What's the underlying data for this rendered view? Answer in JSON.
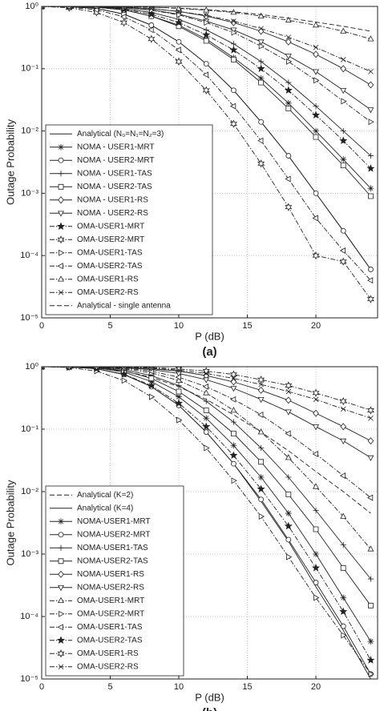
{
  "chart_data": [
    {
      "type": "line",
      "panel_label": "(a)",
      "xlabel": "P (dB)",
      "ylabel": "Outage Probability",
      "x": [
        0,
        2,
        4,
        6,
        8,
        10,
        12,
        14,
        16,
        18,
        20,
        22,
        24
      ],
      "xlim": [
        0,
        24.5
      ],
      "xticks": [
        0,
        5,
        10,
        15,
        20
      ],
      "y_scale": "log",
      "ylim": [
        1e-05,
        1
      ],
      "yticks": [
        {
          "value": 1e-05,
          "label": "10⁻⁵"
        },
        {
          "value": 0.0001,
          "label": "10⁻⁴"
        },
        {
          "value": 0.001,
          "label": "10⁻³"
        },
        {
          "value": 0.01,
          "label": "10⁻²"
        },
        {
          "value": 0.1,
          "label": "10⁻¹"
        },
        {
          "value": 1,
          "label": "10⁰"
        }
      ],
      "grid": true,
      "legend": "lower left",
      "series": [
        {
          "name": "Analytical (N₀=N₁=N₂=3)",
          "marker": "none",
          "line": "solid",
          "values": [
            1,
            0.99,
            0.93,
            0.75,
            0.5,
            0.27,
            0.12,
            0.045,
            0.014,
            0.004,
            0.001,
            0.00025,
            6e-05
          ]
        },
        {
          "name": "NOMA - USER1-MRT",
          "marker": "asterisk",
          "line": "solid",
          "values": [
            1,
            1,
            0.97,
            0.88,
            0.7,
            0.5,
            0.3,
            0.15,
            0.07,
            0.028,
            0.01,
            0.0035,
            0.0012
          ]
        },
        {
          "name": "NOMA - USER2-MRT",
          "marker": "circle",
          "line": "solid",
          "values": [
            1,
            0.99,
            0.93,
            0.75,
            0.5,
            0.27,
            0.12,
            0.045,
            0.014,
            0.004,
            0.001,
            0.00025,
            6e-05
          ]
        },
        {
          "name": "NOMA - USER1-TAS",
          "marker": "plus",
          "line": "solid",
          "values": [
            1,
            1,
            0.98,
            0.92,
            0.8,
            0.62,
            0.42,
            0.25,
            0.13,
            0.06,
            0.025,
            0.01,
            0.004
          ]
        },
        {
          "name": "NOMA - USER2-TAS",
          "marker": "square",
          "line": "solid",
          "values": [
            1,
            1,
            0.97,
            0.88,
            0.7,
            0.48,
            0.28,
            0.14,
            0.06,
            0.023,
            0.008,
            0.0028,
            0.0009
          ]
        },
        {
          "name": "NOMA - USER1-RS",
          "marker": "diamond",
          "line": "solid",
          "values": [
            1,
            1,
            0.99,
            0.97,
            0.92,
            0.83,
            0.7,
            0.55,
            0.4,
            0.27,
            0.17,
            0.1,
            0.055
          ]
        },
        {
          "name": "NOMA - USER2-RS",
          "marker": "tri-down",
          "line": "solid",
          "values": [
            1,
            1,
            0.99,
            0.95,
            0.88,
            0.75,
            0.58,
            0.42,
            0.27,
            0.16,
            0.09,
            0.045,
            0.022
          ]
        },
        {
          "name": "OMA-USER1-MRT",
          "marker": "pentagram",
          "line": "dashdot",
          "values": [
            1,
            1,
            0.98,
            0.9,
            0.75,
            0.55,
            0.35,
            0.2,
            0.1,
            0.045,
            0.018,
            0.007,
            0.0025
          ]
        },
        {
          "name": "OMA-USER2-MRT",
          "marker": "hexagram",
          "line": "dashdot",
          "values": [
            1,
            0.95,
            0.8,
            0.55,
            0.3,
            0.13,
            0.045,
            0.013,
            0.003,
            0.0006,
            0.0001,
            8e-05,
            2e-05
          ]
        },
        {
          "name": "OMA-USER1-TAS",
          "marker": "tri-right",
          "line": "dashdot",
          "values": [
            1,
            1,
            0.99,
            0.95,
            0.87,
            0.73,
            0.55,
            0.38,
            0.23,
            0.13,
            0.065,
            0.03,
            0.014
          ]
        },
        {
          "name": "OMA-USER2-TAS",
          "marker": "tri-left",
          "line": "dashdot",
          "values": [
            1,
            0.97,
            0.88,
            0.68,
            0.42,
            0.2,
            0.08,
            0.025,
            0.007,
            0.0017,
            0.0004,
            0.00012,
            4e-05
          ]
        },
        {
          "name": "OMA-USER1-RS",
          "marker": "tri-up",
          "line": "dashdot",
          "values": [
            1,
            1,
            1,
            0.99,
            0.97,
            0.93,
            0.87,
            0.8,
            0.7,
            0.6,
            0.5,
            0.4,
            0.3
          ]
        },
        {
          "name": "OMA-USER2-RS",
          "marker": "x",
          "line": "dashdot",
          "values": [
            1,
            1,
            0.99,
            0.97,
            0.92,
            0.83,
            0.72,
            0.58,
            0.44,
            0.32,
            0.22,
            0.14,
            0.09
          ]
        },
        {
          "name": "Analytical - single antenna",
          "marker": "none",
          "line": "dashed",
          "values": [
            1,
            1,
            1,
            0.99,
            0.97,
            0.94,
            0.89,
            0.82,
            0.74,
            0.65,
            0.56,
            0.48,
            0.4
          ]
        }
      ]
    },
    {
      "type": "line",
      "panel_label": "(b)",
      "xlabel": "P (dB)",
      "ylabel": "Outage Probability",
      "x": [
        0,
        2,
        4,
        6,
        8,
        10,
        12,
        14,
        16,
        18,
        20,
        22,
        24
      ],
      "xlim": [
        0,
        24.5
      ],
      "xticks": [
        0,
        5,
        10,
        15,
        20
      ],
      "y_scale": "log",
      "ylim": [
        1e-05,
        1
      ],
      "yticks": [
        {
          "value": 1e-05,
          "label": "10⁻⁵"
        },
        {
          "value": 0.0001,
          "label": "10⁻⁴"
        },
        {
          "value": 0.001,
          "label": "10⁻³"
        },
        {
          "value": 0.01,
          "label": "10⁻²"
        },
        {
          "value": 0.1,
          "label": "10⁻¹"
        },
        {
          "value": 1,
          "label": "10⁰"
        }
      ],
      "grid": true,
      "legend": "lower left",
      "series": [
        {
          "name": "Analytical (K=2)",
          "marker": "none",
          "line": "dashed",
          "values": [
            1,
            0.99,
            0.95,
            0.85,
            0.68,
            0.48,
            0.3,
            0.17,
            0.09,
            0.045,
            0.021,
            0.01,
            0.0045
          ]
        },
        {
          "name": "Analytical (K=4)",
          "marker": "none",
          "line": "solid",
          "values": [
            1,
            0.99,
            0.93,
            0.75,
            0.48,
            0.24,
            0.09,
            0.028,
            0.007,
            0.0016,
            0.0003,
            6e-05,
            1e-05
          ]
        },
        {
          "name": "NOMA-USER1-MRT",
          "marker": "asterisk",
          "line": "solid",
          "values": [
            1,
            1,
            0.96,
            0.82,
            0.58,
            0.33,
            0.15,
            0.055,
            0.017,
            0.0045,
            0.001,
            0.0002,
            4e-05
          ]
        },
        {
          "name": "NOMA-USER2-MRT",
          "marker": "circle",
          "line": "solid",
          "values": [
            1,
            0.99,
            0.93,
            0.75,
            0.48,
            0.24,
            0.09,
            0.028,
            0.0075,
            0.0017,
            0.00035,
            7e-05,
            1.2e-05
          ]
        },
        {
          "name": "NOMA-USER1-TAS",
          "marker": "plus",
          "line": "solid",
          "values": [
            1,
            1,
            0.98,
            0.9,
            0.72,
            0.5,
            0.28,
            0.13,
            0.05,
            0.017,
            0.005,
            0.0014,
            0.0004
          ]
        },
        {
          "name": "NOMA-USER2-TAS",
          "marker": "square",
          "line": "solid",
          "values": [
            1,
            1,
            0.97,
            0.86,
            0.65,
            0.4,
            0.2,
            0.085,
            0.03,
            0.009,
            0.0025,
            0.0006,
            0.00015
          ]
        },
        {
          "name": "NOMA-USER1-RS",
          "marker": "diamond",
          "line": "solid",
          "values": [
            1,
            1,
            1,
            0.98,
            0.93,
            0.85,
            0.72,
            0.57,
            0.42,
            0.29,
            0.18,
            0.11,
            0.065
          ]
        },
        {
          "name": "NOMA-USER2-RS",
          "marker": "tri-down",
          "line": "solid",
          "values": [
            1,
            1,
            0.99,
            0.96,
            0.9,
            0.78,
            0.62,
            0.45,
            0.3,
            0.19,
            0.11,
            0.065,
            0.035
          ]
        },
        {
          "name": "OMA-USER1-MRT",
          "marker": "tri-up",
          "line": "dashdot",
          "values": [
            1,
            1,
            0.99,
            0.93,
            0.8,
            0.6,
            0.38,
            0.2,
            0.09,
            0.035,
            0.012,
            0.004,
            0.0012
          ]
        },
        {
          "name": "OMA-USER2-MRT",
          "marker": "tri-right",
          "line": "dashdot",
          "values": [
            1,
            0.97,
            0.85,
            0.6,
            0.33,
            0.14,
            0.05,
            0.015,
            0.004,
            0.0009,
            0.0002,
            5e-05,
            1.2e-05
          ]
        },
        {
          "name": "OMA-USER1-TAS",
          "marker": "tri-left",
          "line": "dashdot",
          "values": [
            1,
            1,
            0.99,
            0.95,
            0.85,
            0.68,
            0.48,
            0.3,
            0.17,
            0.085,
            0.04,
            0.018,
            0.008
          ]
        },
        {
          "name": "OMA-USER2-TAS",
          "marker": "pentagram",
          "line": "dashdot",
          "values": [
            1,
            0.99,
            0.93,
            0.76,
            0.5,
            0.26,
            0.11,
            0.038,
            0.011,
            0.0028,
            0.0006,
            0.00012,
            2e-05
          ]
        },
        {
          "name": "OMA-USER1-RS",
          "marker": "hexagram",
          "line": "dashdot",
          "values": [
            1,
            1,
            1,
            0.99,
            0.97,
            0.92,
            0.85,
            0.75,
            0.62,
            0.5,
            0.38,
            0.28,
            0.2
          ]
        },
        {
          "name": "OMA-USER2-RS",
          "marker": "x",
          "line": "dashdot",
          "values": [
            1,
            1,
            1,
            0.98,
            0.95,
            0.88,
            0.78,
            0.65,
            0.52,
            0.4,
            0.3,
            0.21,
            0.15
          ]
        }
      ]
    }
  ]
}
